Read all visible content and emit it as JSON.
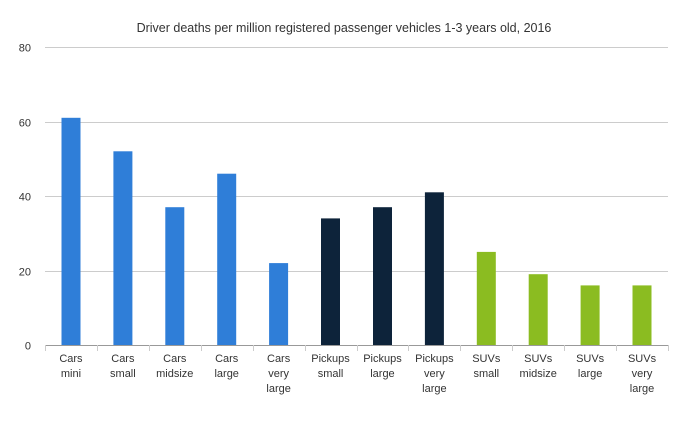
{
  "chart_data": {
    "type": "bar",
    "title": "Driver deaths per million registered passenger vehicles 1-3 years old, 2016",
    "xlabel": "",
    "ylabel": "",
    "ylim": [
      0,
      80
    ],
    "yticks": [
      0,
      20,
      40,
      60,
      80
    ],
    "grid": true,
    "legend": "none",
    "categories": [
      [
        "Cars",
        "mini"
      ],
      [
        "Cars",
        "small"
      ],
      [
        "Cars",
        "midsize"
      ],
      [
        "Cars",
        "large"
      ],
      [
        "Cars",
        "very",
        "large"
      ],
      [
        "Pickups",
        "small"
      ],
      [
        "Pickups",
        "large"
      ],
      [
        "Pickups",
        "very",
        "large"
      ],
      [
        "SUVs",
        "small"
      ],
      [
        "SUVs",
        "midsize"
      ],
      [
        "SUVs",
        "large"
      ],
      [
        "SUVs",
        "very",
        "large"
      ]
    ],
    "values": [
      61,
      52,
      37,
      46,
      22,
      34,
      37,
      41,
      25,
      19,
      16,
      16
    ],
    "group_colors": {
      "Cars": "#2f7ed8",
      "Pickups": "#0d233a",
      "SUVs": "#8bbc21"
    }
  }
}
